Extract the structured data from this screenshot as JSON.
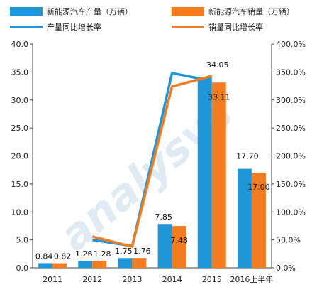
{
  "chart_data": {
    "type": "bar",
    "categories": [
      "2011",
      "2012",
      "2013",
      "2014",
      "2015",
      "2016上半年"
    ],
    "series": [
      {
        "name": "新能源汽车产量（万辆）",
        "kind": "bar",
        "axis": "left",
        "color": "#1f96d8",
        "values": [
          0.84,
          1.26,
          1.75,
          7.85,
          34.05,
          17.7
        ],
        "labels": [
          "0.84",
          "1.26",
          "1.75",
          "7.85",
          "34.05",
          "17.70"
        ]
      },
      {
        "name": "新能源汽车销量（万辆）",
        "kind": "bar",
        "axis": "left",
        "color": "#f47b20",
        "values": [
          0.82,
          1.28,
          1.76,
          7.48,
          33.11,
          17.0
        ],
        "labels": [
          "0.82",
          "1.28",
          "1.76",
          "7.48",
          "33.11",
          "17.00"
        ]
      },
      {
        "name": "产量同比增长率",
        "kind": "line",
        "axis": "right",
        "color": "#1f96d8",
        "values": [
          null,
          50.0,
          39.0,
          348.0,
          334.0,
          null
        ]
      },
      {
        "name": "销量同比增长率",
        "kind": "line",
        "axis": "right",
        "color": "#f47b20",
        "values": [
          null,
          56.0,
          38.0,
          324.0,
          343.0,
          null
        ]
      }
    ],
    "ylim": [
      0,
      40
    ],
    "yticks": [
      "0.0",
      "5.0",
      "10.0",
      "15.0",
      "20.0",
      "25.0",
      "30.0",
      "35.0",
      "40.0"
    ],
    "y2lim": [
      0,
      400
    ],
    "y2ticks": [
      "0.0%",
      "50.0%",
      "100.0%",
      "150.0%",
      "200.0%",
      "250.0%",
      "300.0%",
      "350.0%",
      "400.0%"
    ],
    "legend": "top",
    "watermark": "analysys"
  }
}
